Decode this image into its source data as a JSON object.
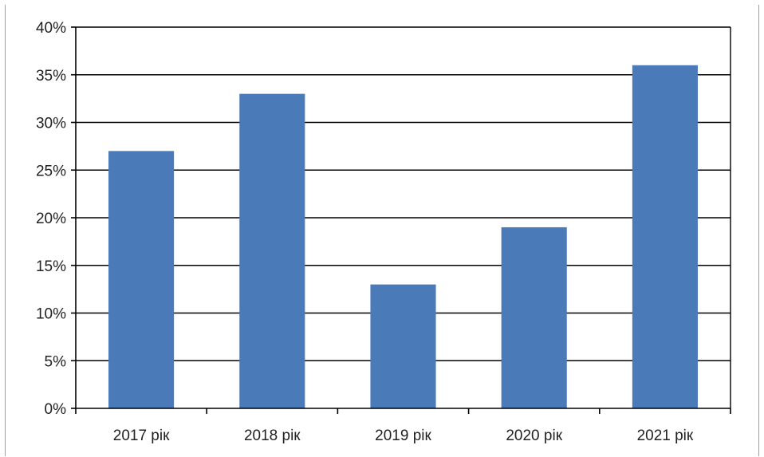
{
  "chart_data": {
    "type": "bar",
    "categories": [
      "2017 рік",
      "2018 рік",
      "2019 рік",
      "2020 рік",
      "2021 рік"
    ],
    "values": [
      27,
      33,
      13,
      19,
      36
    ],
    "value_unit": "%",
    "ylim": [
      0,
      40
    ],
    "yticks": [
      0,
      5,
      10,
      15,
      20,
      25,
      30,
      35,
      40
    ],
    "ytick_labels": [
      "0%",
      "5%",
      "10%",
      "15%",
      "20%",
      "25%",
      "30%",
      "35%",
      "40%"
    ],
    "title": "",
    "xlabel": "",
    "ylabel": "",
    "grid": "horizontal",
    "legend": "none",
    "bar_color": "#4a7ab8"
  }
}
